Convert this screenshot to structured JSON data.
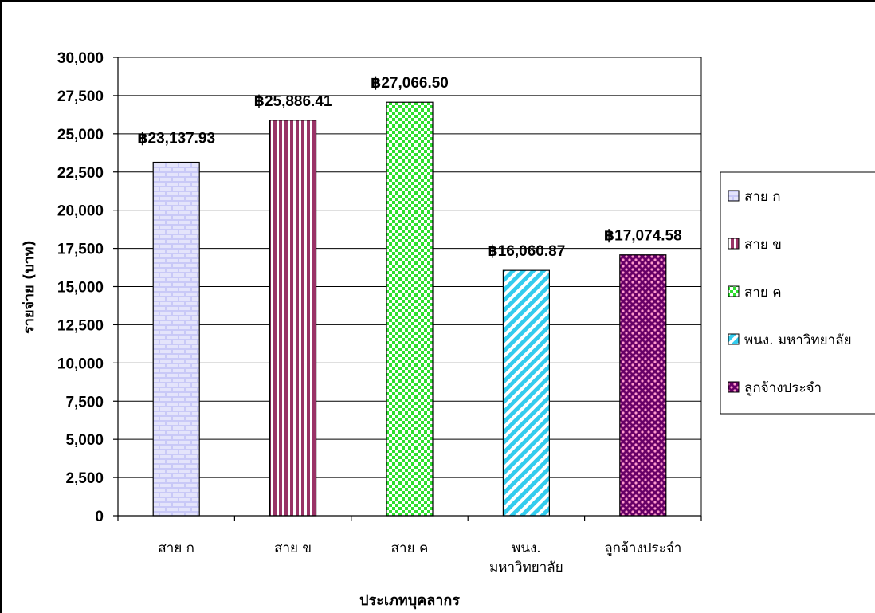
{
  "chart_data": {
    "type": "bar",
    "categories": [
      [
        "สาย ก"
      ],
      [
        "สาย ข"
      ],
      [
        "สาย ค"
      ],
      [
        "พนง.",
        "มหาวิทยาลัย"
      ],
      [
        "ลูกจ้างประจำ"
      ]
    ],
    "values": [
      23137.93,
      25886.41,
      27066.5,
      16060.87,
      17074.58
    ],
    "value_labels": [
      "฿23,137.93",
      "฿25,886.41",
      "฿27,066.50",
      "฿16,060.87",
      "฿17,074.58"
    ],
    "ylim": [
      0,
      30000
    ],
    "y_ticks": [
      0,
      2500,
      5000,
      7500,
      10000,
      12500,
      15000,
      17500,
      20000,
      22500,
      25000,
      27500,
      30000
    ],
    "y_tick_labels": [
      "0",
      "2,500",
      "5,000",
      "7,500",
      "10,000",
      "12,500",
      "15,000",
      "17,500",
      "20,000",
      "22,500",
      "25,000",
      "27,500",
      "30,000"
    ],
    "xlabel": "ประเภทบุคลากร",
    "ylabel": "รายจ่าย (บาท)",
    "grid": true,
    "legend_placement": "right",
    "legend": [
      "สาย ก",
      "สาย ข",
      "สาย ค",
      "พนง. มหาวิทยาลัย",
      "ลูกจ้างประจำ"
    ],
    "series_patterns": [
      "brick",
      "vertical-stripes",
      "checkerboard",
      "diagonal-stripes",
      "dots"
    ],
    "series_colors": [
      "#ccccff",
      "#993366",
      "#33ff33",
      "#33ccff",
      "#660066"
    ]
  }
}
